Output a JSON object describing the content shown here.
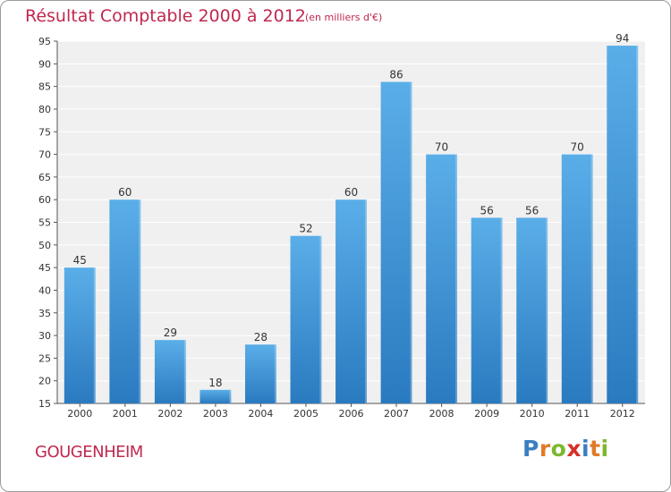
{
  "title": "Résultat Comptable 2000 à 2012",
  "subtitle": "(en milliers d'€)",
  "commune": "GOUGENHEIM",
  "logo": {
    "letters": [
      "P",
      "r",
      "o",
      "x",
      "i",
      "t",
      "i"
    ],
    "colors": [
      "#3a7fc1",
      "#e07b28",
      "#7cb82f",
      "#d6302a",
      "#3a7fc1",
      "#e07b28",
      "#7cb82f"
    ]
  },
  "colors": {
    "title": "#c0284f",
    "bar_top": "#5aaee8",
    "bar_bottom": "#2a7ac0",
    "plot_background": "#f0f0f0",
    "grid": "#ffffff"
  },
  "chart_data": {
    "type": "bar",
    "title": "Résultat Comptable 2000 à 2012",
    "subtitle": "(en milliers d'€)",
    "categories": [
      "2000",
      "2001",
      "2002",
      "2003",
      "2004",
      "2005",
      "2006",
      "2007",
      "2008",
      "2009",
      "2010",
      "2011",
      "2012"
    ],
    "values": [
      45,
      60,
      29,
      18,
      28,
      52,
      60,
      86,
      70,
      56,
      56,
      70,
      94
    ],
    "ylim": [
      15,
      95
    ],
    "yticks": [
      15,
      20,
      25,
      30,
      35,
      40,
      45,
      50,
      55,
      60,
      65,
      70,
      75,
      80,
      85,
      90,
      95
    ],
    "grid": true,
    "xlabel": "",
    "ylabel": ""
  }
}
